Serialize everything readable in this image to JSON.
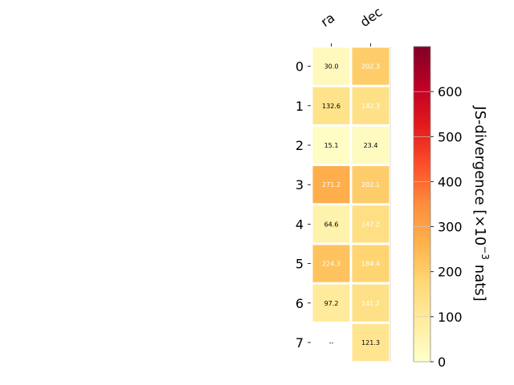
{
  "chart_data": {
    "type": "heatmap",
    "columns": [
      "ra",
      "dec"
    ],
    "rows": [
      "0",
      "1",
      "2",
      "3",
      "4",
      "5",
      "6",
      "7"
    ],
    "values": [
      [
        30.0,
        202.3
      ],
      [
        132.6,
        142.3
      ],
      [
        15.1,
        23.4
      ],
      [
        271.2,
        202.1
      ],
      [
        64.6,
        147.2
      ],
      [
        224.3,
        184.4
      ],
      [
        97.2,
        141.2
      ],
      [
        null,
        121.3
      ]
    ],
    "cell_labels": [
      [
        "30.0",
        "202.3"
      ],
      [
        "132.6",
        "142.3"
      ],
      [
        "15.1",
        "23.4"
      ],
      [
        "271.2",
        "202.1"
      ],
      [
        "64.6",
        "147.2"
      ],
      [
        "224.3",
        "184.4"
      ],
      [
        "97.2",
        "141.2"
      ],
      [
        "--",
        "121.3"
      ]
    ],
    "colorbar": {
      "label_main": "JS-divergence [×10",
      "label_exp": "−3",
      "label_unit": " nats]",
      "vmin": 0,
      "vmax": 700,
      "ticks": [
        "0",
        "100",
        "200",
        "300",
        "400",
        "500",
        "600"
      ],
      "colormap": "YlOrRd"
    },
    "grid": false,
    "legend": "none"
  }
}
